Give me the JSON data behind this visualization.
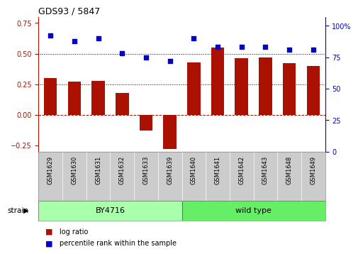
{
  "title": "GDS93 / 5847",
  "samples": [
    "GSM1629",
    "GSM1630",
    "GSM1631",
    "GSM1632",
    "GSM1633",
    "GSM1639",
    "GSM1640",
    "GSM1641",
    "GSM1642",
    "GSM1643",
    "GSM1648",
    "GSM1649"
  ],
  "log_ratio": [
    0.3,
    0.27,
    0.28,
    0.18,
    -0.13,
    -0.28,
    0.43,
    0.55,
    0.46,
    0.47,
    0.42,
    0.4
  ],
  "percentile_rank": [
    92,
    88,
    90,
    78,
    75,
    72,
    90,
    83,
    83,
    83,
    81,
    81
  ],
  "groups": [
    {
      "label": "BY4716",
      "start": 0,
      "end": 5,
      "color": "#aaffaa"
    },
    {
      "label": "wild type",
      "start": 6,
      "end": 11,
      "color": "#66ee66"
    }
  ],
  "bar_color": "#aa1100",
  "dot_color": "#0000cc",
  "ylim_left": [
    -0.3,
    0.8
  ],
  "ylim_right": [
    0,
    107
  ],
  "yticks_left": [
    -0.25,
    0.0,
    0.25,
    0.5,
    0.75
  ],
  "yticks_right": [
    0,
    25,
    50,
    75,
    100
  ],
  "hlines": [
    0.25,
    0.5
  ],
  "zero_line": 0.0,
  "bg_color": "#ffffff",
  "strain_label": "strain",
  "legend_items": [
    {
      "label": "log ratio",
      "color": "#aa1100"
    },
    {
      "label": "percentile rank within the sample",
      "color": "#0000cc"
    }
  ]
}
